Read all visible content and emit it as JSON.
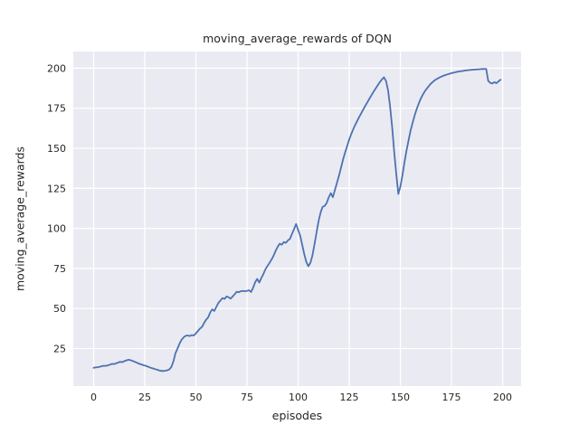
{
  "chart_data": {
    "type": "line",
    "title": "moving_average_rewards of DQN",
    "xlabel": "episodes",
    "ylabel": "moving_average_rewards",
    "x_start": 0,
    "x_step": 1,
    "xticks": [
      0,
      25,
      50,
      75,
      100,
      125,
      150,
      175,
      200
    ],
    "yticks": [
      25,
      50,
      75,
      100,
      125,
      150,
      175,
      200
    ],
    "xlim": [
      -9.96,
      209.06
    ],
    "ylim": [
      1.6,
      210.4
    ],
    "grid": true,
    "legend_position": "none",
    "style": {
      "figure_bg": "#ffffff",
      "plot_bg": "#eaeaf2",
      "grid_color": "#ffffff",
      "text_color": "#262626",
      "line_color": "#4c72b0",
      "line_width": 1.8
    },
    "series": [
      {
        "name": "moving_average_rewards",
        "color": "#4c72b0",
        "values": [
          13.0,
          13.2,
          13.4,
          13.7,
          14.0,
          14.3,
          14.2,
          14.6,
          15.0,
          15.5,
          15.3,
          15.8,
          16.3,
          16.8,
          16.5,
          17.2,
          17.6,
          18.0,
          17.8,
          17.3,
          16.8,
          16.2,
          15.7,
          15.2,
          14.8,
          14.4,
          14.0,
          13.5,
          13.0,
          12.6,
          12.2,
          11.8,
          11.4,
          11.1,
          11.0,
          11.2,
          11.4,
          12.0,
          13.5,
          17.0,
          22.0,
          25.0,
          28.0,
          30.5,
          32.0,
          33.0,
          33.2,
          32.8,
          33.4,
          33.2,
          34.5,
          36.0,
          37.5,
          38.5,
          41.0,
          43.0,
          44.5,
          47.5,
          49.5,
          48.5,
          51.0,
          53.5,
          55.0,
          56.5,
          56.0,
          57.5,
          57.0,
          56.2,
          57.5,
          59.0,
          60.5,
          60.2,
          60.8,
          61.0,
          60.8,
          61.0,
          61.4,
          60.3,
          63.0,
          66.5,
          68.5,
          66.2,
          69.0,
          71.5,
          74.5,
          76.5,
          78.5,
          80.5,
          83.0,
          86.0,
          88.5,
          90.5,
          89.8,
          91.5,
          91.0,
          92.5,
          93.5,
          96.5,
          99.5,
          102.8,
          99.0,
          95.5,
          90.0,
          84.0,
          79.0,
          76.4,
          78.5,
          83.0,
          90.0,
          97.5,
          104.5,
          110.0,
          113.5,
          114.0,
          116.0,
          119.5,
          122.0,
          119.5,
          124.0,
          128.5,
          133.0,
          138.0,
          143.0,
          147.5,
          151.5,
          155.5,
          159.0,
          162.0,
          164.8,
          167.4,
          169.8,
          172.2,
          174.5,
          176.8,
          179.0,
          181.2,
          183.4,
          185.5,
          187.5,
          189.5,
          191.3,
          193.0,
          194.3,
          192.0,
          186.0,
          176.0,
          163.0,
          148.0,
          134.0,
          121.5,
          126.0,
          133.0,
          141.0,
          148.5,
          155.0,
          161.0,
          166.0,
          170.5,
          174.5,
          178.0,
          181.0,
          183.5,
          185.6,
          187.4,
          189.0,
          190.4,
          191.6,
          192.6,
          193.4,
          194.1,
          194.7,
          195.2,
          195.7,
          196.1,
          196.5,
          196.9,
          197.2,
          197.5,
          197.8,
          198.0,
          198.2,
          198.4,
          198.6,
          198.8,
          198.9,
          199.0,
          199.1,
          199.2,
          199.3,
          199.4,
          199.5,
          199.5,
          199.6,
          192.0,
          190.8,
          190.4,
          191.3,
          190.6,
          191.8,
          192.8
        ]
      }
    ]
  }
}
